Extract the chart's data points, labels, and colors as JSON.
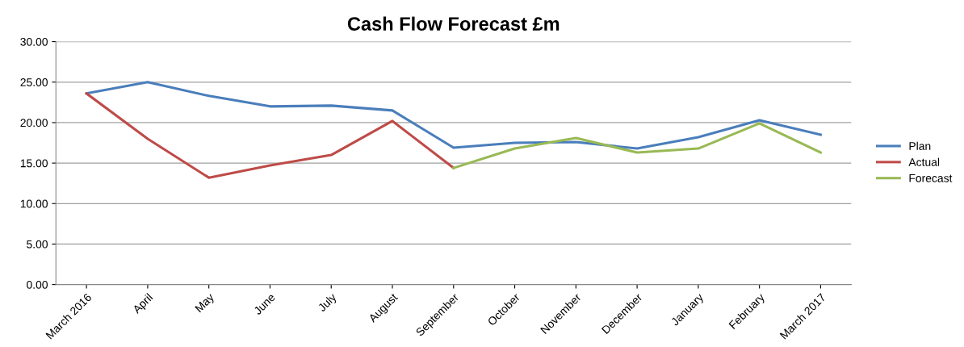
{
  "chart_data": {
    "type": "line",
    "title": "Cash Flow Forecast £m",
    "categories": [
      "March 2016",
      "April",
      "May",
      "June",
      "July",
      "August",
      "September",
      "October",
      "November",
      "December",
      "January",
      "February",
      "March 2017"
    ],
    "series": [
      {
        "name": "Plan",
        "color": "#4a7ebb",
        "values": [
          23.6,
          25.0,
          23.3,
          22.0,
          22.1,
          21.5,
          16.9,
          17.5,
          17.6,
          16.8,
          18.2,
          20.3,
          18.5
        ]
      },
      {
        "name": "Actual",
        "color": "#be4b48",
        "values": [
          23.6,
          18.0,
          13.2,
          14.7,
          16.0,
          20.2,
          14.4,
          null,
          null,
          null,
          null,
          null,
          null
        ]
      },
      {
        "name": "Forecast",
        "color": "#98b954",
        "values": [
          null,
          null,
          null,
          null,
          null,
          null,
          14.4,
          16.8,
          18.1,
          16.3,
          16.8,
          19.9,
          16.3
        ]
      }
    ],
    "ylim": [
      0,
      30
    ],
    "yticks": [
      {
        "value": 0,
        "label": "0.00"
      },
      {
        "value": 5,
        "label": "5.00"
      },
      {
        "value": 10,
        "label": "10.00"
      },
      {
        "value": 15,
        "label": "15.00"
      },
      {
        "value": 20,
        "label": "20.00"
      },
      {
        "value": 25,
        "label": "25.00"
      },
      {
        "value": 30,
        "label": "30.00"
      }
    ],
    "grid": "y",
    "legend": "right",
    "marker": "none",
    "line_style": "solid"
  }
}
